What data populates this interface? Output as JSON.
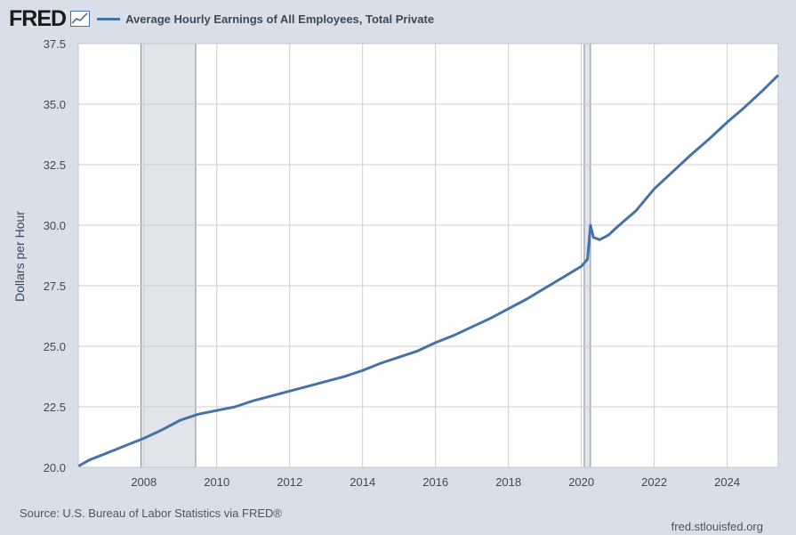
{
  "header": {
    "logo_text": "FRED",
    "logo_icon": "trend-line-icon",
    "series_title": "Average Hourly Earnings of All Employees, Total Private"
  },
  "footer": {
    "source": "Source: U.S. Bureau of Labor Statistics via FRED®",
    "url": "fred.stlouisfed.org"
  },
  "colors": {
    "line": "#4572a7",
    "plot_bg": "#ffffff",
    "page_bg": "#d8dfe8",
    "recession": "#e1e5ea",
    "grid": "#cccccc"
  },
  "chart_data": {
    "type": "line",
    "title": "Average Hourly Earnings of All Employees, Total Private",
    "ylabel": "Dollars per Hour",
    "xlabel": "",
    "xlim": [
      2006.2,
      2025.4
    ],
    "ylim": [
      20.0,
      37.5
    ],
    "yticks": [
      "20.0",
      "22.5",
      "25.0",
      "27.5",
      "30.0",
      "32.5",
      "35.0",
      "37.5"
    ],
    "xticks": [
      "2008",
      "2010",
      "2012",
      "2014",
      "2016",
      "2018",
      "2020",
      "2022",
      "2024"
    ],
    "grid": true,
    "legend": "top-left",
    "recessions": [
      [
        2007.92,
        2009.42
      ],
      [
        2020.08,
        2020.25
      ]
    ],
    "series": [
      {
        "name": "Average Hourly Earnings of All Employees, Total Private",
        "x": [
          2006.21,
          2006.5,
          2007.0,
          2007.5,
          2008.0,
          2008.5,
          2009.0,
          2009.5,
          2010.0,
          2010.5,
          2011.0,
          2011.5,
          2012.0,
          2012.5,
          2013.0,
          2013.5,
          2014.0,
          2014.5,
          2015.0,
          2015.5,
          2016.0,
          2016.5,
          2017.0,
          2017.5,
          2018.0,
          2018.5,
          2019.0,
          2019.5,
          2020.0,
          2020.17,
          2020.25,
          2020.33,
          2020.5,
          2020.75,
          2021.0,
          2021.5,
          2022.0,
          2022.5,
          2023.0,
          2023.5,
          2024.0,
          2024.5,
          2025.0,
          2025.4
        ],
        "y": [
          20.05,
          20.3,
          20.6,
          20.9,
          21.2,
          21.55,
          21.95,
          22.2,
          22.35,
          22.5,
          22.75,
          22.95,
          23.15,
          23.35,
          23.55,
          23.75,
          24.0,
          24.3,
          24.55,
          24.8,
          25.15,
          25.45,
          25.8,
          26.15,
          26.55,
          26.95,
          27.4,
          27.85,
          28.3,
          28.6,
          30.0,
          29.5,
          29.4,
          29.6,
          29.95,
          30.6,
          31.5,
          32.2,
          32.9,
          33.55,
          34.25,
          34.9,
          35.6,
          36.2
        ]
      }
    ]
  }
}
